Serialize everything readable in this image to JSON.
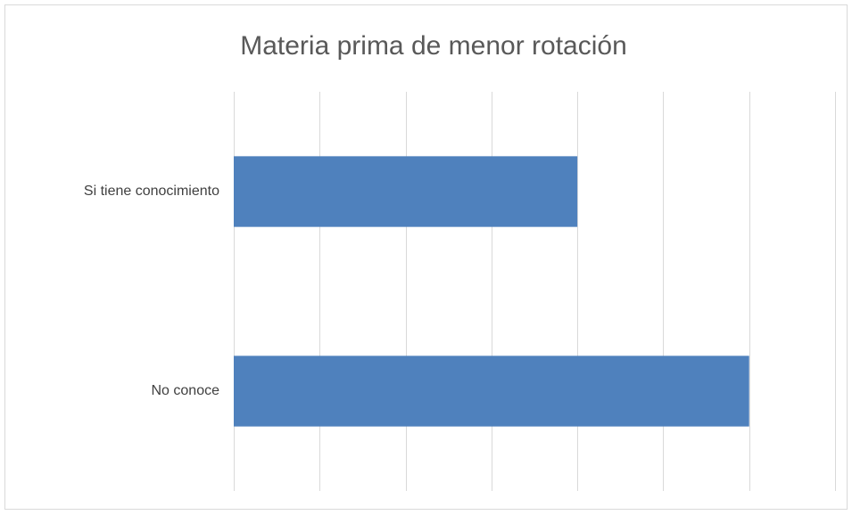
{
  "chart_data": {
    "type": "bar",
    "orientation": "horizontal",
    "title": "Materia prima de menor rotación",
    "categories": [
      "Si tiene conocimiento",
      "No conoce"
    ],
    "values": [
      4,
      6
    ],
    "color": "#4f81bd",
    "xlim": [
      0,
      7
    ],
    "xticks": [
      0,
      1,
      2,
      3,
      4,
      5,
      6,
      7
    ],
    "grid": true
  }
}
